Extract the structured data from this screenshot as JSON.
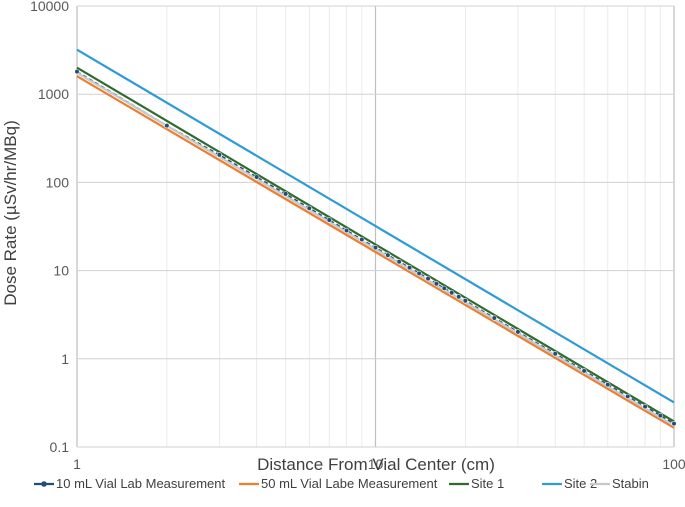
{
  "chart_data": {
    "type": "line",
    "title": "",
    "xlabel": "Distance From Vial Center (cm)",
    "ylabel": "Dose Rate (µSv/hr/MBq)",
    "xscale": "log",
    "yscale": "log",
    "xlim": [
      1,
      100
    ],
    "ylim": [
      0.1,
      10000
    ],
    "x_ticks": [
      1,
      10,
      100
    ],
    "x_tick_labels": [
      "1",
      "10",
      "100"
    ],
    "y_ticks": [
      0.1,
      1,
      10,
      100,
      1000,
      10000
    ],
    "y_tick_labels": [
      "0.1",
      "1",
      "10",
      "100",
      "1000",
      "10000"
    ],
    "grid": "major and minor",
    "legend_position": "bottom",
    "series": [
      {
        "name": "10 mL Vial Lab Measurement",
        "color": "#1f4e79",
        "style": "dashed-with-markers",
        "x": [
          1,
          2,
          3,
          4,
          5,
          6,
          7,
          8,
          9,
          10,
          11,
          12,
          13,
          14,
          15,
          16,
          17,
          18,
          19,
          20,
          25,
          30,
          40,
          50,
          60,
          70,
          80,
          90,
          100
        ],
        "y": [
          1800,
          440,
          205,
          115,
          74,
          51,
          37.5,
          28.5,
          22.5,
          18.2,
          15.0,
          12.6,
          10.8,
          9.3,
          8.1,
          7.1,
          6.3,
          5.6,
          5.05,
          4.55,
          2.9,
          2.02,
          1.14,
          0.73,
          0.51,
          0.375,
          0.287,
          0.227,
          0.184
        ]
      },
      {
        "name": "50 mL Vial Labe Measurement",
        "color": "#ed7d31",
        "style": "solid",
        "x": [
          1,
          100
        ],
        "y": [
          1600,
          0.165
        ]
      },
      {
        "name": "Site 1",
        "color": "#2e6b2e",
        "style": "solid",
        "x": [
          1,
          100
        ],
        "y": [
          2000,
          0.195
        ]
      },
      {
        "name": "Site 2",
        "color": "#2e9bd6",
        "style": "solid",
        "x": [
          1,
          100
        ],
        "y": [
          3200,
          0.32
        ]
      },
      {
        "name": "Stabin",
        "color": "#c8c8c8",
        "style": "solid",
        "x": [
          1,
          100
        ],
        "y": [
          1750,
          0.175
        ]
      }
    ]
  }
}
